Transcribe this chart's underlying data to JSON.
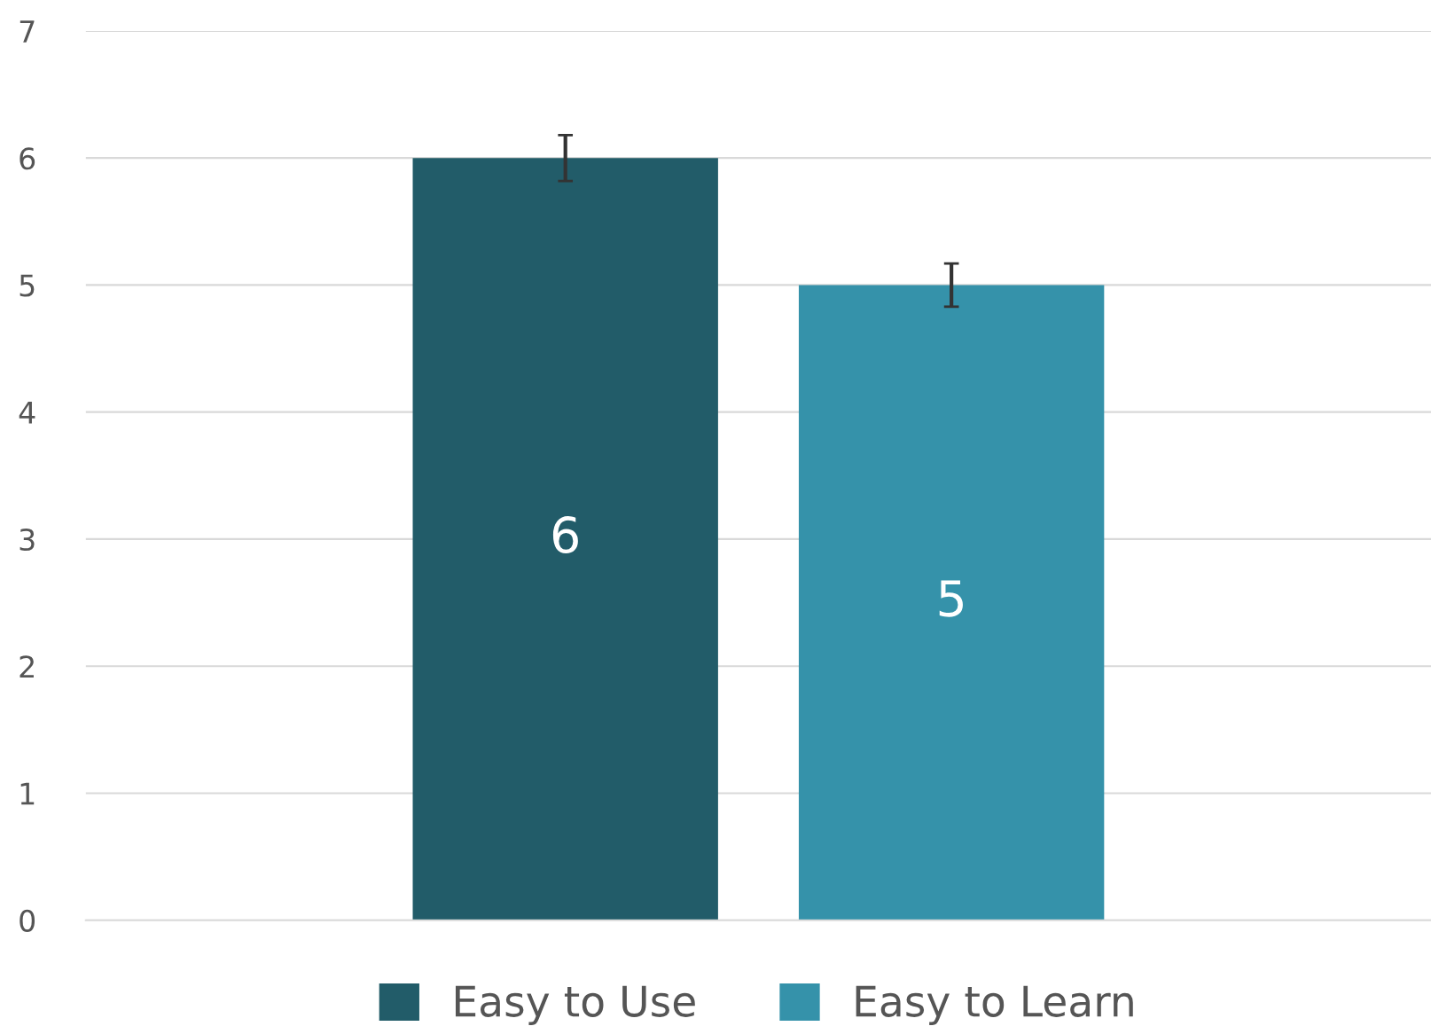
{
  "chart_data": {
    "type": "bar",
    "categories": [
      null
    ],
    "series": [
      {
        "name": "Easy to Use",
        "color": "#225c69",
        "values": [
          6
        ],
        "errors": [
          0.18
        ]
      },
      {
        "name": "Easy to Learn",
        "color": "#3592aa",
        "values": [
          5
        ],
        "errors": [
          0.17
        ]
      }
    ],
    "ylim": [
      0,
      7
    ],
    "yticks": [
      0,
      1,
      2,
      3,
      4,
      5,
      6,
      7
    ],
    "grid": "y",
    "legend": "bottom",
    "data_labels": true
  }
}
